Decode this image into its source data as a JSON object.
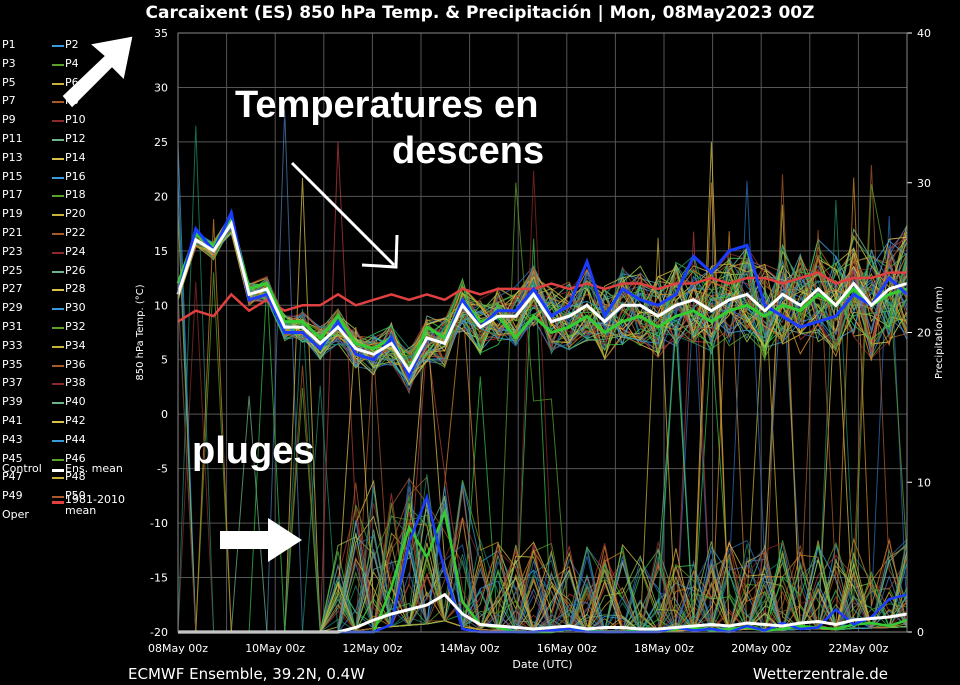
{
  "title": "Carcaixent  (ES)  850 hPa Temp. & Precipitación | Mon, 08May2023 00Z",
  "footer_left": "ECMWF Ensemble, 39.2N, 0.4W",
  "footer_right": "Wetterzentrale.de",
  "annotations": {
    "temp_line1": "Temperatures en",
    "temp_line2": "descens",
    "precip": "pluges"
  },
  "legend": {
    "members": [
      "P1",
      "P2",
      "P3",
      "P4",
      "P5",
      "P6",
      "P7",
      "P8",
      "P9",
      "P10",
      "P11",
      "P12",
      "P13",
      "P14",
      "P15",
      "P16",
      "P17",
      "P18",
      "P19",
      "P20",
      "P21",
      "P22",
      "P23",
      "P24",
      "P25",
      "P26",
      "P27",
      "P28",
      "P29",
      "P30",
      "P31",
      "P32",
      "P33",
      "P34",
      "P35",
      "P36",
      "P37",
      "P38",
      "P39",
      "P40",
      "P41",
      "P42",
      "P43",
      "P44",
      "P45",
      "P46",
      "P47",
      "P48",
      "P49",
      "P50"
    ],
    "control": "Control",
    "ens_mean": "Ens. mean",
    "clim_line1": "1981-2010",
    "clim_line2": "mean",
    "oper": "Oper"
  },
  "colors": {
    "palette": [
      "#2f6db5",
      "#3a9ad9",
      "#1f8a6e",
      "#5aa02c",
      "#35c24a",
      "#c7b23a",
      "#d08a2a",
      "#a85a2a",
      "#b33a3a",
      "#8a2a2a",
      "#4a7ab0",
      "#6fb38a",
      "#9ac24a",
      "#d9c24a"
    ],
    "oper": "#1a3cff",
    "control": "#33cc33",
    "ens_mean": "#ffffff",
    "climate": "#e04040",
    "grid": "#555555"
  },
  "chart_data": {
    "type": "line",
    "title": "Carcaixent  (ES)  850 hPa Temp. & Precipitación | Mon, 08May2023 00Z",
    "xlabel": "Date (UTC)",
    "ylabel_left": "850 hPa Temp. (°C)",
    "ylabel_right": "Precipitation (mm)",
    "x_ticks": [
      "08May 00z",
      "10May 00z",
      "12May 00z",
      "14May 00z",
      "16May 00z",
      "18May 00z",
      "20May 00z",
      "22May 00z"
    ],
    "x_range_days": [
      0,
      15
    ],
    "ylim_left": [
      -20,
      35
    ],
    "y_ticks_left": [
      -20,
      -15,
      -10,
      -5,
      0,
      5,
      10,
      15,
      20,
      25,
      30,
      35
    ],
    "ylim_right": [
      0,
      40
    ],
    "y_ticks_right": [
      0,
      10,
      20,
      30,
      40
    ],
    "grid": true,
    "series_ens_mean_temp": [
      11,
      16,
      15,
      17.5,
      11,
      11.5,
      8,
      8,
      6.5,
      8,
      6,
      5.5,
      6.5,
      4,
      7,
      6.5,
      10,
      8,
      9,
      9,
      11,
      8.5,
      9,
      10,
      8.5,
      10,
      10,
      9,
      10,
      10.5,
      9.5,
      10.5,
      11,
      9.5,
      11,
      10,
      11.5,
      10,
      12,
      10,
      11.5,
      12
    ],
    "series_oper_temp": [
      11,
      17,
      15,
      18.5,
      10.5,
      11,
      7.5,
      7.5,
      6,
      8.5,
      5.5,
      5,
      7,
      3.5,
      7,
      6.5,
      10.5,
      8,
      9.5,
      9.5,
      11.5,
      9,
      10,
      14,
      9,
      11.5,
      10.5,
      10,
      11,
      14.5,
      13,
      15,
      15.5,
      10,
      9,
      8,
      8.5,
      9,
      11,
      10,
      12.5,
      11
    ],
    "series_control_temp": [
      12,
      16.5,
      15.5,
      18,
      11.5,
      12,
      8.5,
      8.5,
      7,
      9,
      6.5,
      6,
      7,
      4,
      8,
      7,
      10.5,
      8.5,
      9,
      7,
      9,
      7.5,
      8,
      9,
      7.5,
      8.5,
      9,
      8,
      9,
      9.5,
      8.5,
      9.5,
      10,
      9,
      10,
      9.5,
      11,
      10,
      11.5,
      10,
      11,
      11.5
    ],
    "series_climate_temp": [
      8.5,
      9.5,
      9,
      11,
      9.5,
      10.5,
      9.5,
      10,
      10,
      11,
      10,
      10.5,
      11,
      10.5,
      11,
      10.5,
      11.5,
      11,
      11.5,
      11.5,
      11.5,
      12,
      11.5,
      12,
      11.5,
      12,
      12,
      11.5,
      12,
      12,
      12.5,
      12,
      12.5,
      12.5,
      12,
      12.5,
      13,
      12,
      12.5,
      12.5,
      13,
      13
    ],
    "series_ens_mean_precip": [
      0,
      0,
      0,
      0,
      0,
      0,
      0,
      0,
      0,
      0,
      0.3,
      0.8,
      1.2,
      1.5,
      1.8,
      2.5,
      1.2,
      0.5,
      0.4,
      0.3,
      0.2,
      0.3,
      0.4,
      0.2,
      0.3,
      0.3,
      0.2,
      0.2,
      0.3,
      0.4,
      0.5,
      0.4,
      0.6,
      0.5,
      0.4,
      0.6,
      0.7,
      0.5,
      0.8,
      0.9,
      1.0,
      1.2
    ],
    "series_oper_precip": [
      0,
      0,
      0,
      0,
      0,
      0,
      0,
      0,
      0,
      0,
      0,
      0,
      0.5,
      6,
      9,
      4,
      0.2,
      0,
      0,
      0,
      0,
      0.1,
      0.2,
      0,
      0,
      0,
      0,
      0,
      0.3,
      0.1,
      0.2,
      0,
      0.4,
      0.1,
      0.6,
      0.2,
      0.3,
      1.5,
      0.5,
      1.0,
      2.2,
      2.5
    ],
    "series_control_precip": [
      0,
      0,
      0,
      0,
      0,
      0,
      0,
      0,
      0,
      0,
      0,
      0,
      3,
      7,
      5,
      8,
      2,
      0.5,
      0.3,
      0,
      0,
      0,
      0.2,
      0.1,
      0,
      0,
      0.2,
      0,
      0.2,
      0.3,
      0.1,
      0.2,
      0.3,
      0.1,
      0.2,
      0.4,
      0.3,
      0.2,
      0.5,
      0.6,
      0.4,
      0.8
    ]
  }
}
